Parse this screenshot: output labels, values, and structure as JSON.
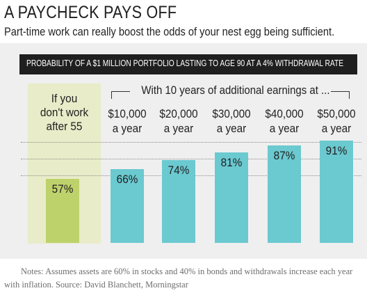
{
  "header": {
    "title": "A PAYCHECK PAYS OFF",
    "subtitle": "Part-time work can really boost the odds of your nest egg being sufficient."
  },
  "band_title": "PROBABILITY OF A $1 MILLION PORTFOLIO LASTING TO AGE 90 AT A 4% WITHDRAWAL RATE",
  "baseline_label": [
    "If you",
    "don't work",
    "after 55"
  ],
  "group_label": "With 10 years of additional earnings at ...",
  "notes": "Notes: Assumes assets are 60% in stocks and 40% in bonds and withdrawals increase each year with inflation. Source: David Blanchett, Morningstar",
  "colors": {
    "baseline_bar": "#bed26b",
    "earnings_bar": "#6bc9d0",
    "baseline_column_bg": "#e8ecc8",
    "panel_bg": "#efefef",
    "band_bg": "#1f1f1f"
  },
  "chart_data": {
    "type": "bar",
    "title": "PROBABILITY OF A $1 MILLION PORTFOLIO LASTING TO AGE 90 AT A 4% WITHDRAWAL RATE",
    "categories": [
      [
        "If you",
        "don't work",
        "after 55"
      ],
      [
        "$10,000",
        "a year"
      ],
      [
        "$20,000",
        "a year"
      ],
      [
        "$30,000",
        "a year"
      ],
      [
        "$40,000",
        "a year"
      ],
      [
        "$50,000",
        "a year"
      ]
    ],
    "values": [
      57,
      66,
      74,
      81,
      87,
      91
    ],
    "value_labels": [
      "57%",
      "66%",
      "74%",
      "81%",
      "87%",
      "91%"
    ],
    "unit": "%",
    "grid": true
  }
}
